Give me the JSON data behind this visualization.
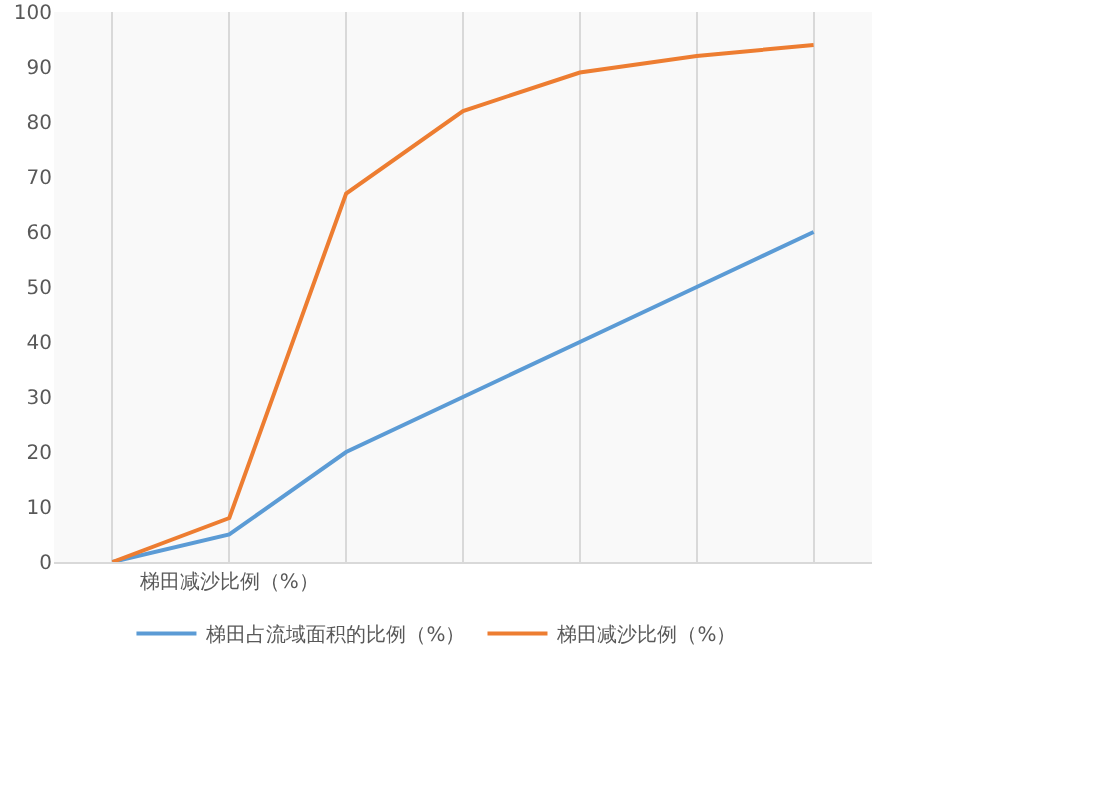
{
  "chart_data": {
    "type": "line",
    "categories": [
      null,
      "梯田减沙比例（%）",
      null,
      null,
      null,
      null,
      null
    ],
    "series": [
      {
        "name": "梯田占流域面积的比例（%）",
        "color": "#5b9bd5",
        "values": [
          0,
          5,
          20,
          30,
          40,
          50,
          60
        ]
      },
      {
        "name": "梯田减沙比例（%）",
        "color": "#ed7d31",
        "values": [
          0,
          8,
          67,
          82,
          89,
          92,
          94
        ]
      }
    ],
    "ylim": [
      0,
      100
    ],
    "yticks": [
      0,
      10,
      20,
      30,
      40,
      50,
      60,
      70,
      80,
      90,
      100
    ],
    "grid": "x",
    "legend": "bottom",
    "marker": "none",
    "line_style": "solid"
  }
}
